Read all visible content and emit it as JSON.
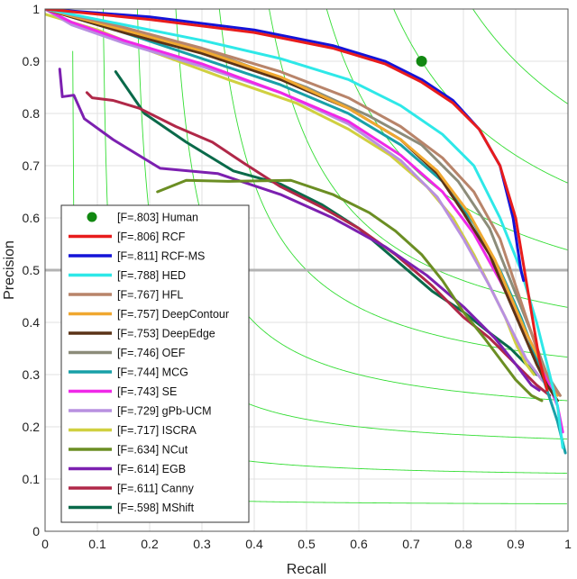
{
  "chart_data": {
    "type": "line",
    "title": "",
    "xlabel": "Recall",
    "ylabel": "Precision",
    "xlim": [
      0,
      1
    ],
    "ylim": [
      0,
      1
    ],
    "xticks": [
      "0",
      "0.1",
      "0.2",
      "0.3",
      "0.4",
      "0.5",
      "0.6",
      "0.7",
      "0.8",
      "0.9",
      "1"
    ],
    "yticks": [
      "0",
      "0.1",
      "0.2",
      "0.3",
      "0.4",
      "0.5",
      "0.6",
      "0.7",
      "0.8",
      "0.9",
      "1"
    ],
    "grid": true,
    "reference_line": {
      "y": 0.5,
      "color": "#b3b3b3"
    },
    "iso_f_lines": {
      "values": [
        0.1,
        0.2,
        0.3,
        0.4,
        0.5,
        0.6,
        0.7,
        0.8,
        0.9
      ],
      "color": "#33dd33"
    },
    "human_point": {
      "label": "[F=.803] Human",
      "recall": 0.72,
      "precision": 0.9,
      "color": "#118811"
    },
    "legend_position": "bottom-left",
    "series": [
      {
        "name": "[F=.806] RCF",
        "color": "#e81c1c",
        "x": [
          0.0,
          0.2,
          0.4,
          0.55,
          0.65,
          0.72,
          0.78,
          0.83,
          0.87,
          0.9,
          0.925,
          0.945,
          0.96
        ],
        "y": [
          1.0,
          0.98,
          0.955,
          0.925,
          0.895,
          0.86,
          0.82,
          0.77,
          0.7,
          0.6,
          0.45,
          0.33,
          0.27
        ]
      },
      {
        "name": "[F=.811] RCF-MS",
        "color": "#1414d8",
        "x": [
          0.0,
          0.2,
          0.4,
          0.55,
          0.65,
          0.72,
          0.78,
          0.83,
          0.87,
          0.895,
          0.91,
          0.915
        ],
        "y": [
          1.0,
          0.985,
          0.96,
          0.93,
          0.9,
          0.865,
          0.825,
          0.77,
          0.7,
          0.6,
          0.5,
          0.48
        ]
      },
      {
        "name": "[F=.788] HED",
        "color": "#2ee8e8",
        "x": [
          0.0,
          0.15,
          0.3,
          0.45,
          0.58,
          0.68,
          0.76,
          0.82,
          0.87,
          0.91,
          0.94,
          0.96,
          0.98,
          0.99
        ],
        "y": [
          1.0,
          0.97,
          0.94,
          0.905,
          0.865,
          0.815,
          0.76,
          0.7,
          0.6,
          0.5,
          0.4,
          0.32,
          0.24,
          0.16
        ]
      },
      {
        "name": "[F=.767] HFL",
        "color": "#b8846a",
        "x": [
          0.0,
          0.15,
          0.3,
          0.45,
          0.58,
          0.68,
          0.76,
          0.82,
          0.87,
          0.9,
          0.93,
          0.95,
          0.97,
          0.985
        ],
        "y": [
          1.0,
          0.965,
          0.925,
          0.88,
          0.83,
          0.775,
          0.715,
          0.65,
          0.56,
          0.47,
          0.38,
          0.32,
          0.28,
          0.26
        ]
      },
      {
        "name": "[F=.757] DeepContour",
        "color": "#f0a830",
        "x": [
          0.0,
          0.15,
          0.3,
          0.45,
          0.58,
          0.68,
          0.75,
          0.81,
          0.86,
          0.89,
          0.92,
          0.95,
          0.98
        ],
        "y": [
          1.0,
          0.96,
          0.92,
          0.87,
          0.81,
          0.75,
          0.69,
          0.61,
          0.52,
          0.45,
          0.38,
          0.32,
          0.26
        ]
      },
      {
        "name": "[F=.753] DeepEdge",
        "color": "#5b3317",
        "x": [
          0.0,
          0.15,
          0.3,
          0.45,
          0.58,
          0.68,
          0.75,
          0.8,
          0.85,
          0.88,
          0.91,
          0.94,
          0.96,
          0.98
        ],
        "y": [
          1.0,
          0.955,
          0.915,
          0.865,
          0.81,
          0.75,
          0.685,
          0.61,
          0.53,
          0.46,
          0.39,
          0.32,
          0.28,
          0.25
        ]
      },
      {
        "name": "[F=.746] OEF",
        "color": "#8c8c7a",
        "x": [
          0.0,
          0.1,
          0.2,
          0.35,
          0.5,
          0.62,
          0.72,
          0.79,
          0.85,
          0.89,
          0.93,
          0.96,
          0.985
        ],
        "y": [
          1.0,
          0.975,
          0.95,
          0.905,
          0.85,
          0.795,
          0.74,
          0.67,
          0.58,
          0.48,
          0.38,
          0.3,
          0.26
        ]
      },
      {
        "name": "[F=.744] MCG",
        "color": "#18a0a8",
        "x": [
          0.0,
          0.15,
          0.3,
          0.45,
          0.58,
          0.68,
          0.76,
          0.82,
          0.87,
          0.91,
          0.94,
          0.96,
          0.98,
          0.995
        ],
        "y": [
          1.0,
          0.955,
          0.905,
          0.855,
          0.8,
          0.74,
          0.67,
          0.59,
          0.5,
          0.41,
          0.33,
          0.27,
          0.21,
          0.15
        ]
      },
      {
        "name": "[F=.743] SE",
        "color": "#f028e8",
        "x": [
          0.0,
          0.05,
          0.15,
          0.3,
          0.45,
          0.58,
          0.68,
          0.76,
          0.82,
          0.87,
          0.91,
          0.94,
          0.96,
          0.98,
          0.99
        ],
        "y": [
          1.0,
          0.975,
          0.94,
          0.895,
          0.84,
          0.785,
          0.72,
          0.65,
          0.57,
          0.48,
          0.4,
          0.34,
          0.29,
          0.24,
          0.19
        ]
      },
      {
        "name": "[F=.729] gPb-UCM",
        "color": "#b890e0",
        "x": [
          0.0,
          0.05,
          0.15,
          0.3,
          0.45,
          0.58,
          0.68,
          0.75,
          0.8,
          0.85,
          0.89,
          0.92,
          0.95,
          0.97
        ],
        "y": [
          1.0,
          0.97,
          0.935,
          0.89,
          0.84,
          0.78,
          0.71,
          0.64,
          0.56,
          0.47,
          0.39,
          0.33,
          0.29,
          0.27
        ]
      },
      {
        "name": "[F=.717] ISCRA",
        "color": "#d0d040",
        "x": [
          0.0,
          0.1,
          0.2,
          0.35,
          0.48,
          0.58,
          0.66,
          0.73,
          0.78,
          0.82,
          0.85,
          0.88,
          0.9,
          0.92,
          0.935
        ],
        "y": [
          0.99,
          0.96,
          0.92,
          0.865,
          0.82,
          0.77,
          0.72,
          0.66,
          0.6,
          0.53,
          0.47,
          0.41,
          0.36,
          0.32,
          0.3
        ]
      },
      {
        "name": "[F=.634] NCut",
        "color": "#6b8e23",
        "x": [
          0.215,
          0.27,
          0.35,
          0.47,
          0.55,
          0.62,
          0.67,
          0.72,
          0.76,
          0.8,
          0.84,
          0.87,
          0.9,
          0.93,
          0.95
        ],
        "y": [
          0.65,
          0.672,
          0.67,
          0.672,
          0.645,
          0.61,
          0.575,
          0.53,
          0.48,
          0.42,
          0.37,
          0.33,
          0.29,
          0.26,
          0.25
        ]
      },
      {
        "name": "[F=.614] EGB",
        "color": "#7c20b0",
        "x": [
          0.028,
          0.033,
          0.055,
          0.075,
          0.13,
          0.22,
          0.33,
          0.45,
          0.55,
          0.65,
          0.73,
          0.8,
          0.86,
          0.9,
          0.93,
          0.945
        ],
        "y": [
          0.885,
          0.832,
          0.835,
          0.79,
          0.75,
          0.695,
          0.685,
          0.645,
          0.6,
          0.545,
          0.49,
          0.43,
          0.37,
          0.32,
          0.28,
          0.27
        ]
      },
      {
        "name": "[F=.611] Canny",
        "color": "#b02848",
        "x": [
          0.08,
          0.09,
          0.13,
          0.18,
          0.25,
          0.32,
          0.38,
          0.45,
          0.53,
          0.6,
          0.67,
          0.74,
          0.8,
          0.85,
          0.9,
          0.94,
          0.965
        ],
        "y": [
          0.84,
          0.83,
          0.825,
          0.81,
          0.775,
          0.745,
          0.705,
          0.66,
          0.62,
          0.58,
          0.53,
          0.47,
          0.41,
          0.37,
          0.32,
          0.28,
          0.26
        ]
      },
      {
        "name": "[F=.598] MShift",
        "color": "#0a6a4a",
        "x": [
          0.135,
          0.19,
          0.27,
          0.36,
          0.45,
          0.53,
          0.6,
          0.67,
          0.74,
          0.8,
          0.85,
          0.89,
          0.92,
          0.94
        ],
        "y": [
          0.88,
          0.8,
          0.745,
          0.69,
          0.665,
          0.625,
          0.58,
          0.52,
          0.46,
          0.42,
          0.38,
          0.35,
          0.32,
          0.3
        ]
      }
    ]
  }
}
